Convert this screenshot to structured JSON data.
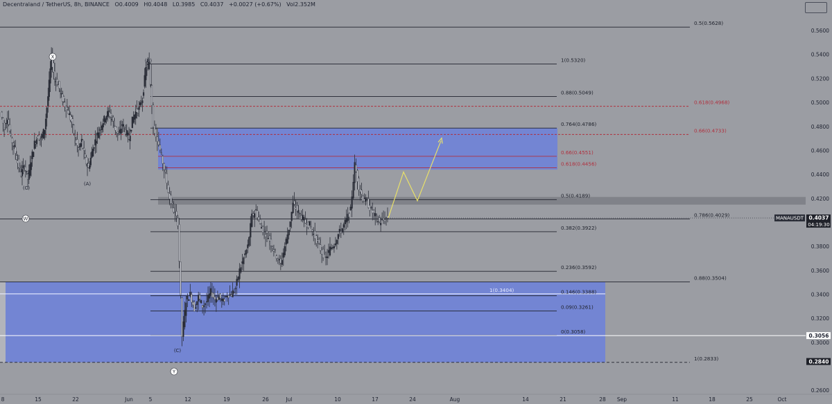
{
  "header": {
    "symbol": "Decentraland / TetherUS, 8h, BINANCE",
    "open": "O0.4009",
    "high": "H0.4048",
    "low": "L0.3985",
    "close": "C0.4037",
    "change": "+0.0027 (+0.67%)",
    "volume": "Vol2.352M"
  },
  "chart_data": {
    "type": "line",
    "symbol": "MANAUSDT",
    "ylim": [
      0.2578,
      0.5808
    ],
    "yticks": [
      {
        "v": 0.56,
        "label": "0.5600"
      },
      {
        "v": 0.54,
        "label": "0.5400"
      },
      {
        "v": 0.52,
        "label": "0.5200"
      },
      {
        "v": 0.5,
        "label": "0.5000"
      },
      {
        "v": 0.48,
        "label": "0.4800"
      },
      {
        "v": 0.46,
        "label": "0.4600"
      },
      {
        "v": 0.44,
        "label": "0.4400"
      },
      {
        "v": 0.42,
        "label": "0.4200"
      },
      {
        "v": 0.38,
        "label": "0.3800"
      },
      {
        "v": 0.36,
        "label": "0.3600"
      },
      {
        "v": 0.34,
        "label": "0.3400"
      },
      {
        "v": 0.32,
        "label": "0.3200"
      },
      {
        "v": 0.3,
        "label": "0.3000"
      },
      {
        "v": 0.26,
        "label": "0.2600"
      }
    ],
    "xticks": [
      "8",
      "15",
      "22",
      "Jun",
      "5",
      "12",
      "19",
      "26",
      "Jul",
      "10",
      "17",
      "24",
      "Aug",
      "14",
      "21",
      "28",
      "Sep",
      "11",
      "18",
      "25",
      "Oct"
    ],
    "price_tags": [
      {
        "label": "MANAUSDT",
        "value": "0.4037",
        "time": "04:19:30",
        "style": "dark"
      },
      {
        "label": "",
        "value": "0.3056",
        "time": "",
        "style": "light"
      },
      {
        "label": "",
        "value": "0.2840",
        "time": "",
        "style": "dark"
      }
    ],
    "current_price": 0.4037,
    "price_path": [
      [
        0.492,
        0.478,
        0.488,
        0.47,
        0.462,
        0.45,
        0.44,
        0.448,
        0.436,
        0.452,
        0.466,
        0.472,
        0.47,
        0.478,
        0.505,
        0.538,
        0.52,
        0.515,
        0.505,
        0.498,
        0.492,
        0.484,
        0.47,
        0.46,
        0.468,
        0.452,
        0.445,
        0.458,
        0.468,
        0.476,
        0.482,
        0.488,
        0.492,
        0.486,
        0.478,
        0.472,
        0.482,
        0.476,
        0.47,
        0.485,
        0.492,
        0.495,
        0.503,
        0.528,
        0.532
      ],
      [
        0.532,
        0.48,
        0.47,
        0.455,
        0.44,
        0.42,
        0.41,
        0.4,
        0.305,
        0.335,
        0.34,
        0.328,
        0.338,
        0.33,
        0.334,
        0.342,
        0.336,
        0.338,
        0.334,
        0.34,
        0.34,
        0.345,
        0.36,
        0.37,
        0.38,
        0.405,
        0.41,
        0.398,
        0.392,
        0.388,
        0.38,
        0.372,
        0.365,
        0.38,
        0.395,
        0.415,
        0.41,
        0.405,
        0.4,
        0.398,
        0.39,
        0.383,
        0.375,
        0.37,
        0.378,
        0.382,
        0.39,
        0.395,
        0.402,
        0.41,
        0.448,
        0.43,
        0.42,
        0.417,
        0.41,
        0.405,
        0.4,
        0.402,
        0.404
      ],
      [
        0.4037,
        0.442,
        0.418,
        0.468
      ]
    ],
    "fib_levels": [
      {
        "label": "0.5(0.5628)",
        "v": 0.5628,
        "color": "#20232d",
        "set": "outer"
      },
      {
        "label": "1(0.5320)",
        "v": 0.532,
        "color": "#20232d",
        "set": "inner"
      },
      {
        "label": "0.88(0.5049)",
        "v": 0.5049,
        "color": "#20232d",
        "set": "inner"
      },
      {
        "label": "0.618(0.4968)",
        "v": 0.4968,
        "color": "#b0303e",
        "set": "red"
      },
      {
        "label": "0.764(0.4786)",
        "v": 0.4786,
        "color": "#20232d",
        "set": "inner"
      },
      {
        "label": "0.66(0.4733)",
        "v": 0.4733,
        "color": "#b0303e",
        "set": "red"
      },
      {
        "label": "0.66(0.4551)",
        "v": 0.4551,
        "color": "#b0303e",
        "set": "zone"
      },
      {
        "label": "0.618(0.4456)",
        "v": 0.4456,
        "color": "#b0303e",
        "set": "zone"
      },
      {
        "label": "0.5(0.4189)",
        "v": 0.4189,
        "color": "#20232d",
        "set": "inner"
      },
      {
        "label": "0.786(0.4029)",
        "v": 0.4029,
        "color": "#20232d",
        "set": "outer"
      },
      {
        "label": "0.382(0.3922)",
        "v": 0.3922,
        "color": "#20232d",
        "set": "inner"
      },
      {
        "label": "0.236(0.3592)",
        "v": 0.3592,
        "color": "#20232d",
        "set": "inner"
      },
      {
        "label": "0.88(0.3504)",
        "v": 0.3504,
        "color": "#20232d",
        "set": "outer"
      },
      {
        "label": "1(0.3404)",
        "v": 0.3404,
        "color": "#e8ecff",
        "set": "box"
      },
      {
        "label": "0.146(0.3388)",
        "v": 0.3388,
        "color": "#20232d",
        "set": "inner"
      },
      {
        "label": "0.09(0.3261)",
        "v": 0.3261,
        "color": "#20232d",
        "set": "inner"
      },
      {
        "label": "0(0.3058)",
        "v": 0.3058,
        "color": "#20232d",
        "set": "inner"
      },
      {
        "label": "1(0.2833)",
        "v": 0.2833,
        "color": "#20232d",
        "set": "outer"
      }
    ],
    "zones": [
      {
        "from": 0.4786,
        "to": 0.444,
        "color": "#6f83d8"
      },
      {
        "from": 0.4212,
        "to": 0.4148,
        "color": "#7d7f86"
      },
      {
        "from": 0.3504,
        "to": 0.2833,
        "color": "#6f83d8"
      }
    ],
    "wave_labels": [
      {
        "text": "X",
        "circled": true
      },
      {
        "text": "(B)",
        "circled": false
      },
      {
        "text": "(C)",
        "circled": false
      },
      {
        "text": "(A)",
        "circled": false
      },
      {
        "text": "W",
        "circled": true
      },
      {
        "text": "(C)",
        "circled": false
      },
      {
        "text": "Y",
        "circled": true
      }
    ],
    "colors": {
      "bg": "#9b9da3",
      "candle": "#2a2d37",
      "projection": "#e8e06a",
      "zone": "#6f83d8",
      "fib_red": "#b0303e"
    }
  }
}
